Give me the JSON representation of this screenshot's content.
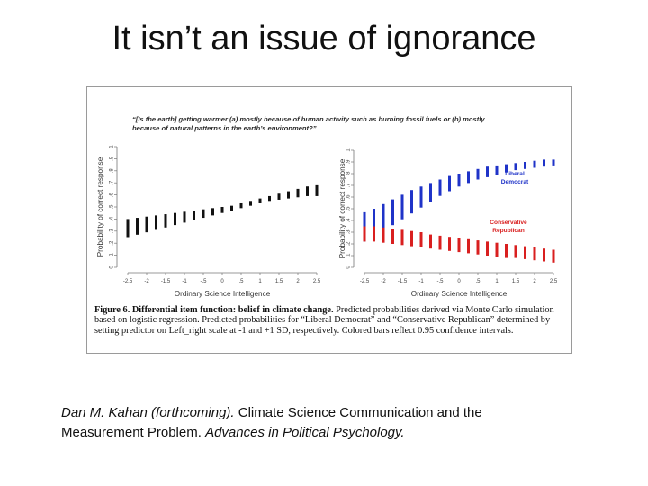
{
  "slide": {
    "title": "It isn’t an issue of ignorance"
  },
  "figure": {
    "question_line1": "“[Is the earth] getting warmer (a) mostly because of human activity such as burning fossil fuels or (b) mostly",
    "question_line2": "because of natural patterns in the earth’s environment?”",
    "caption_bold": "Figure 6. Differential item function: belief in climate change.",
    "caption_rest": " Predicted probabilities derived via Monte Carlo simulation based on logistic regression. Predicted probabilities for “Liberal Democrat” and “Conservative Republican” determined by setting predictor on Left_right scale at -1 and +1 SD, respectively. Colored bars reflect 0.95 confidence intervals."
  },
  "citation": {
    "author": "Dan M. Kahan (forthcoming).",
    "title": " Climate Science Communication and the Measurement Problem. ",
    "journal": "Advances in Political Psychology."
  },
  "chart_data": [
    {
      "type": "error-bar",
      "xlabel": "Ordinary Science Intelligence",
      "ylabel": "Probability of correct response",
      "x_ticks": [
        "-2.5",
        "-2",
        "-1.5",
        "-1",
        "-.5",
        "0",
        ".5",
        "1",
        "1.5",
        "2",
        "2.5"
      ],
      "y_ticks": [
        "0",
        ".1",
        ".2",
        ".3",
        ".4",
        ".5",
        ".6",
        ".7",
        ".8",
        ".9",
        "1"
      ],
      "xlim": [
        -2.5,
        2.5
      ],
      "ylim": [
        0,
        1
      ],
      "series": [
        {
          "color": "#111111",
          "x": [
            -2.5,
            -2.25,
            -2.0,
            -1.75,
            -1.5,
            -1.25,
            -1.0,
            -0.75,
            -0.5,
            -0.25,
            0.0,
            0.25,
            0.5,
            0.75,
            1.0,
            1.25,
            1.5,
            1.75,
            2.0,
            2.25,
            2.5
          ],
          "low": [
            0.25,
            0.27,
            0.29,
            0.31,
            0.33,
            0.35,
            0.37,
            0.39,
            0.41,
            0.43,
            0.45,
            0.47,
            0.49,
            0.51,
            0.53,
            0.55,
            0.56,
            0.57,
            0.58,
            0.59,
            0.59
          ],
          "high": [
            0.4,
            0.41,
            0.42,
            0.43,
            0.44,
            0.45,
            0.46,
            0.47,
            0.48,
            0.49,
            0.5,
            0.51,
            0.53,
            0.55,
            0.57,
            0.59,
            0.61,
            0.63,
            0.65,
            0.67,
            0.68
          ]
        }
      ]
    },
    {
      "type": "error-bar",
      "xlabel": "Ordinary Science Intelligence",
      "ylabel": "Probability of correct response",
      "x_ticks": [
        "-2.5",
        "-2",
        "-1.5",
        "-1",
        "-.5",
        "0",
        ".5",
        "1",
        "1.5",
        "2",
        "2.5"
      ],
      "y_ticks": [
        "0",
        ".1",
        ".2",
        ".3",
        ".4",
        ".5",
        ".6",
        ".7",
        ".8",
        ".9",
        "1"
      ],
      "xlim": [
        -2.5,
        2.5
      ],
      "ylim": [
        0,
        1
      ],
      "legend": [
        {
          "line1": "Liberal",
          "line2": "Democrat",
          "color": "#1f33c8"
        },
        {
          "line1": "Conservative",
          "line2": "Republican",
          "color": "#d91f1f"
        }
      ],
      "series": [
        {
          "name": "Liberal Democrat",
          "color": "#1f33c8",
          "x": [
            -2.5,
            -2.25,
            -2.0,
            -1.75,
            -1.5,
            -1.25,
            -1.0,
            -0.75,
            -0.5,
            -0.25,
            0.0,
            0.25,
            0.5,
            0.75,
            1.0,
            1.25,
            1.5,
            1.75,
            2.0,
            2.25,
            2.5
          ],
          "low": [
            0.22,
            0.26,
            0.31,
            0.36,
            0.41,
            0.46,
            0.51,
            0.56,
            0.61,
            0.65,
            0.69,
            0.72,
            0.75,
            0.77,
            0.79,
            0.81,
            0.83,
            0.84,
            0.85,
            0.86,
            0.87
          ],
          "high": [
            0.47,
            0.5,
            0.54,
            0.58,
            0.62,
            0.66,
            0.69,
            0.72,
            0.75,
            0.78,
            0.8,
            0.82,
            0.84,
            0.86,
            0.87,
            0.88,
            0.89,
            0.9,
            0.91,
            0.92,
            0.92
          ]
        },
        {
          "name": "Conservative Republican",
          "color": "#d91f1f",
          "x": [
            -2.5,
            -2.25,
            -2.0,
            -1.75,
            -1.5,
            -1.25,
            -1.0,
            -0.75,
            -0.5,
            -0.25,
            0.0,
            0.25,
            0.5,
            0.75,
            1.0,
            1.25,
            1.5,
            1.75,
            2.0,
            2.25,
            2.5
          ],
          "low": [
            0.22,
            0.22,
            0.21,
            0.2,
            0.19,
            0.18,
            0.17,
            0.16,
            0.15,
            0.14,
            0.13,
            0.12,
            0.11,
            0.1,
            0.09,
            0.08,
            0.08,
            0.07,
            0.06,
            0.05,
            0.04
          ],
          "high": [
            0.35,
            0.35,
            0.34,
            0.33,
            0.32,
            0.31,
            0.3,
            0.28,
            0.27,
            0.26,
            0.25,
            0.24,
            0.23,
            0.22,
            0.21,
            0.2,
            0.19,
            0.18,
            0.17,
            0.16,
            0.15
          ]
        }
      ]
    }
  ]
}
